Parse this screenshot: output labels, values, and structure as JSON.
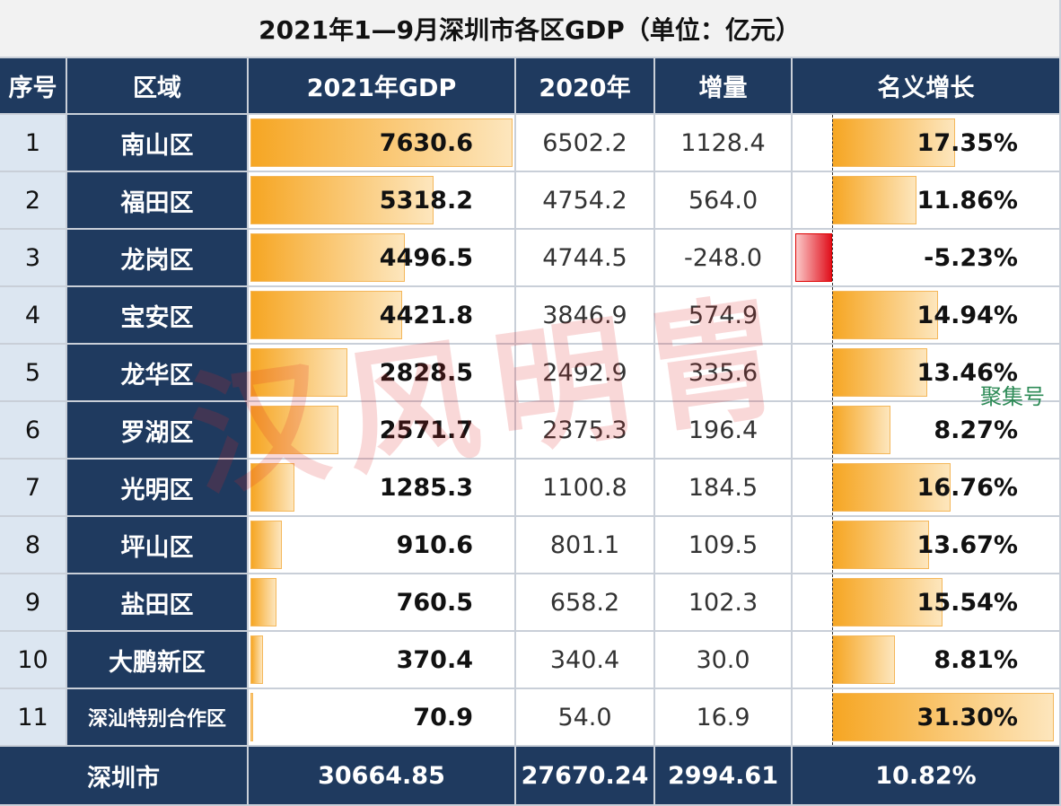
{
  "title": "2021年1—9月深圳市各区GDP（单位：亿元）",
  "table": {
    "header": [
      "序号",
      "区域",
      "2021年GDP",
      "2020年",
      "增量",
      "名义增长"
    ],
    "rows": [
      [
        "1",
        "南山区",
        "7630.6",
        "6502.2",
        "1128.4",
        "17.35%"
      ],
      [
        "2",
        "福田区",
        "5318.2",
        "4754.2",
        "564.0",
        "11.86%"
      ],
      [
        "3",
        "龙岗区",
        "4496.5",
        "4744.5",
        "-248.0",
        "-5.23%"
      ],
      [
        "4",
        "宝安区",
        "4421.8",
        "3846.9",
        "574.9",
        "14.94%"
      ],
      [
        "5",
        "龙华区",
        "2828.5",
        "2492.9",
        "335.6",
        "13.46%"
      ],
      [
        "6",
        "罗湖区",
        "2571.7",
        "2375.3",
        "196.4",
        "8.27%"
      ],
      [
        "7",
        "光明区",
        "1285.3",
        "1100.8",
        "184.5",
        "16.76%"
      ],
      [
        "8",
        "坪山区",
        "910.6",
        "801.1",
        "109.5",
        "13.67%"
      ],
      [
        "9",
        "盐田区",
        "760.5",
        "658.2",
        "102.3",
        "15.54%"
      ],
      [
        "10",
        "大鹏新区",
        "370.4",
        "340.4",
        "30.0",
        "8.81%"
      ],
      [
        "11",
        "深汕特别合作区",
        "70.9",
        "54.0",
        "16.9",
        "31.30%"
      ]
    ],
    "footer": [
      "深圳市",
      "30664.85",
      "27670.24",
      "2994.61",
      "10.82%"
    ]
  },
  "watermark": "汉风明胄",
  "stamp": "聚集号"
}
